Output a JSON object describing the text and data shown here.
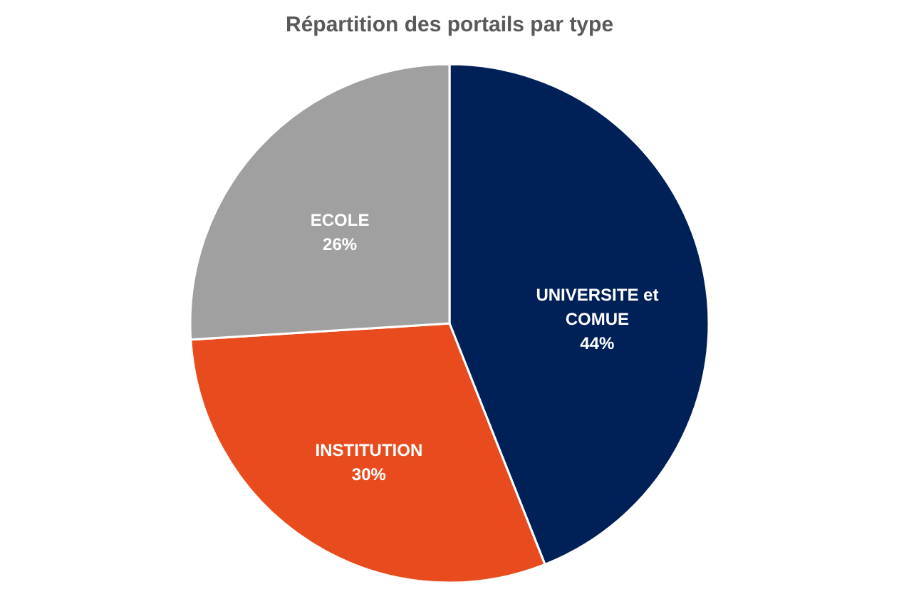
{
  "chart_data": {
    "type": "pie",
    "title": "Répartition des portails par type",
    "categories": [
      "UNIVERSITE et COMUE",
      "INSTITUTION",
      "ECOLE"
    ],
    "values": [
      44,
      30,
      26
    ],
    "colors": [
      "#002157",
      "#e84c1e",
      "#a0a0a0"
    ],
    "value_labels": [
      "44%",
      "30%",
      "26%"
    ],
    "legend": false
  }
}
